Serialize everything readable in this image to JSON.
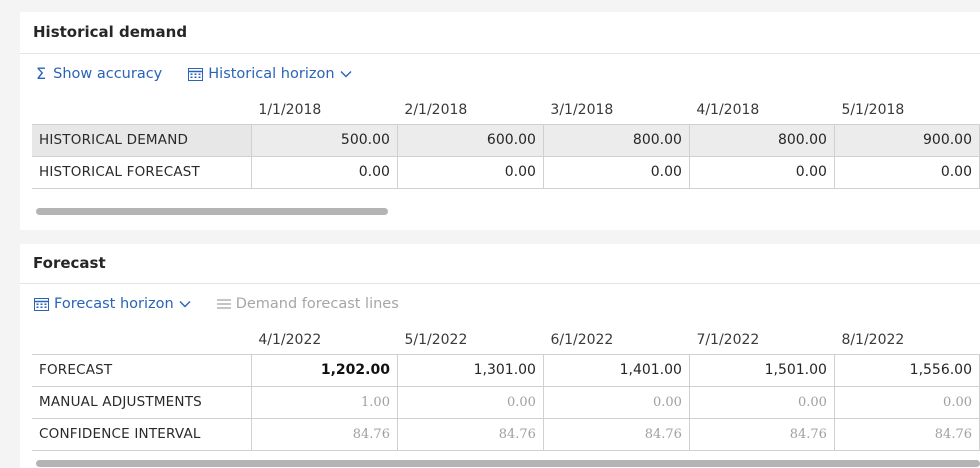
{
  "historical": {
    "title": "Historical demand",
    "toolbar": {
      "show_accuracy": "Show accuracy",
      "historical_horizon": "Historical horizon"
    },
    "columns": [
      "1/1/2018",
      "2/1/2018",
      "3/1/2018",
      "4/1/2018",
      "5/1/2018"
    ],
    "rows": [
      {
        "label": "HISTORICAL DEMAND",
        "values": [
          "500.00",
          "600.00",
          "800.00",
          "800.00",
          "900.00"
        ]
      },
      {
        "label": "HISTORICAL FORECAST",
        "values": [
          "0.00",
          "0.00",
          "0.00",
          "0.00",
          "0.00"
        ]
      }
    ]
  },
  "forecast": {
    "title": "Forecast",
    "toolbar": {
      "forecast_horizon": "Forecast horizon",
      "demand_forecast_lines": "Demand forecast lines"
    },
    "columns": [
      "4/1/2022",
      "5/1/2022",
      "6/1/2022",
      "7/1/2022",
      "8/1/2022"
    ],
    "rows": [
      {
        "label": "FORECAST",
        "values": [
          "1,202.00",
          "1,301.00",
          "1,401.00",
          "1,501.00",
          "1,556.00"
        ]
      },
      {
        "label": "MANUAL ADJUSTMENTS",
        "values": [
          "1.00",
          "0.00",
          "0.00",
          "0.00",
          "0.00"
        ]
      },
      {
        "label": "CONFIDENCE INTERVAL",
        "values": [
          "84.76",
          "84.76",
          "84.76",
          "84.76",
          "84.76"
        ]
      }
    ]
  },
  "colors": {
    "link": "#2a63b8",
    "disabled": "#a6a6a6",
    "shaded_row": "#ececec"
  },
  "icons": {
    "show_accuracy": "sigma-icon",
    "historical_horizon": "calendar-icon",
    "forecast_horizon": "calendar-icon",
    "demand_forecast_lines": "list-lines-icon",
    "dropdown": "chevron-down-icon"
  }
}
